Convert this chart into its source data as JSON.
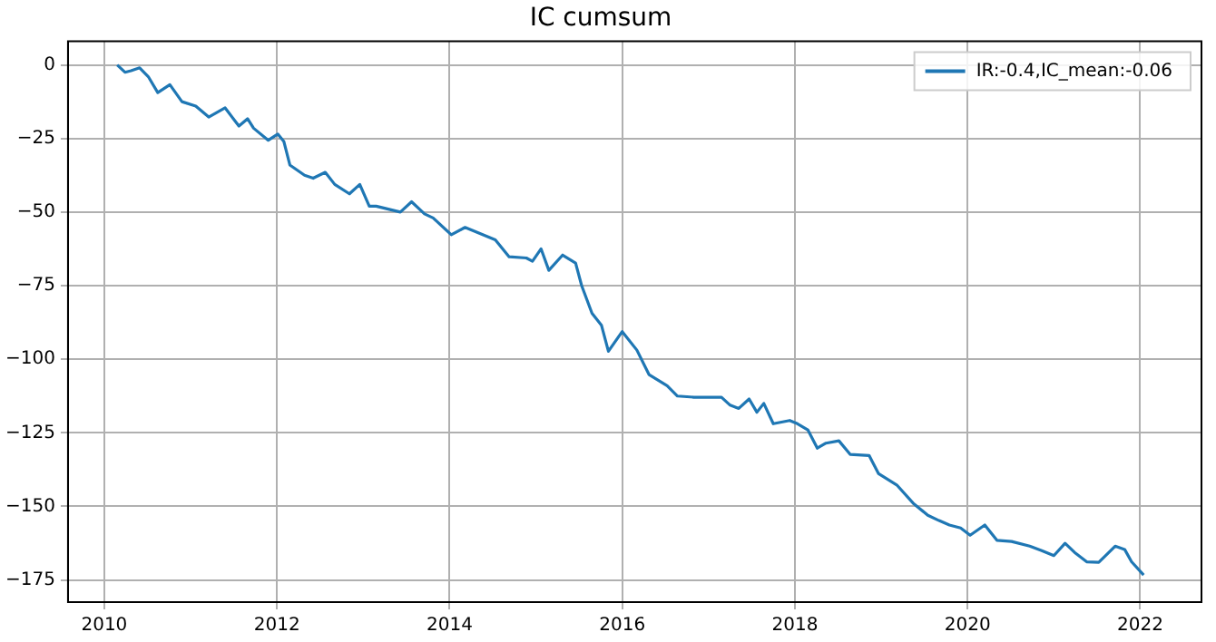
{
  "chart_data": {
    "type": "line",
    "title": "IC cumsum",
    "legend": "top right",
    "grid": true,
    "marker": "none",
    "line_style": "solid",
    "xlim": [
      2009.58,
      2022.71
    ],
    "xticks": [
      2010,
      2012,
      2014,
      2016,
      2018,
      2020,
      2022
    ],
    "ylim": [
      -182.5,
      8
    ],
    "yticks": [
      0,
      -25,
      -50,
      -75,
      -100,
      -125,
      -150,
      -175
    ],
    "series": [
      {
        "name": "IR:-0.4,IC_mean:-0.06",
        "color": "#1f77b4",
        "x": [
          2010.15,
          2010.24,
          2010.31,
          2010.41,
          2010.51,
          2010.62,
          2010.76,
          2010.9,
          2011.06,
          2011.21,
          2011.4,
          2011.56,
          2011.66,
          2011.73,
          2011.9,
          2012.01,
          2012.08,
          2012.15,
          2012.32,
          2012.42,
          2012.56,
          2012.67,
          2012.84,
          2012.96,
          2013.07,
          2013.15,
          2013.43,
          2013.56,
          2013.71,
          2013.81,
          2014.02,
          2014.18,
          2014.32,
          2014.53,
          2014.69,
          2014.89,
          2014.96,
          2015.06,
          2015.15,
          2015.31,
          2015.46,
          2015.53,
          2015.65,
          2015.76,
          2015.84,
          2016.0,
          2016.17,
          2016.31,
          2016.52,
          2016.64,
          2016.83,
          2017.15,
          2017.25,
          2017.35,
          2017.47,
          2017.56,
          2017.64,
          2017.75,
          2017.94,
          2018.03,
          2018.15,
          2018.26,
          2018.36,
          2018.51,
          2018.64,
          2018.86,
          2018.97,
          2019.18,
          2019.37,
          2019.54,
          2019.67,
          2019.79,
          2019.92,
          2020.03,
          2020.2,
          2020.34,
          2020.51,
          2020.72,
          2020.86,
          2021.0,
          2021.13,
          2021.24,
          2021.38,
          2021.52,
          2021.71,
          2021.82,
          2021.9,
          2022.04
        ],
        "values": [
          0,
          -2.5,
          -2,
          -1,
          -4,
          -9.4,
          -6.7,
          -12.5,
          -14,
          -17.7,
          -14.6,
          -20.8,
          -18.3,
          -21.5,
          -25.6,
          -23.5,
          -26,
          -34,
          -37.5,
          -38.5,
          -36.5,
          -40.6,
          -43.8,
          -40.6,
          -48,
          -48,
          -50,
          -46.5,
          -50.6,
          -52,
          -57.7,
          -55.2,
          -56.9,
          -59.4,
          -65.2,
          -65.6,
          -66.7,
          -62.5,
          -69.8,
          -64.6,
          -67.3,
          -75,
          -84.4,
          -88.5,
          -97.3,
          -90.6,
          -96.9,
          -105.2,
          -109,
          -112.5,
          -112.9,
          -112.9,
          -115.6,
          -116.7,
          -113.5,
          -118,
          -115,
          -121.9,
          -120.8,
          -121.9,
          -124,
          -130.2,
          -128.5,
          -127.7,
          -132.3,
          -132.7,
          -138.9,
          -142.7,
          -148.9,
          -153,
          -154.8,
          -156.3,
          -157.3,
          -159.8,
          -156.3,
          -161.5,
          -161.9,
          -163.5,
          -165,
          -166.7,
          -162.5,
          -165.6,
          -168.8,
          -169,
          -163.5,
          -164.6,
          -168.8,
          -173.3
        ]
      }
    ]
  }
}
